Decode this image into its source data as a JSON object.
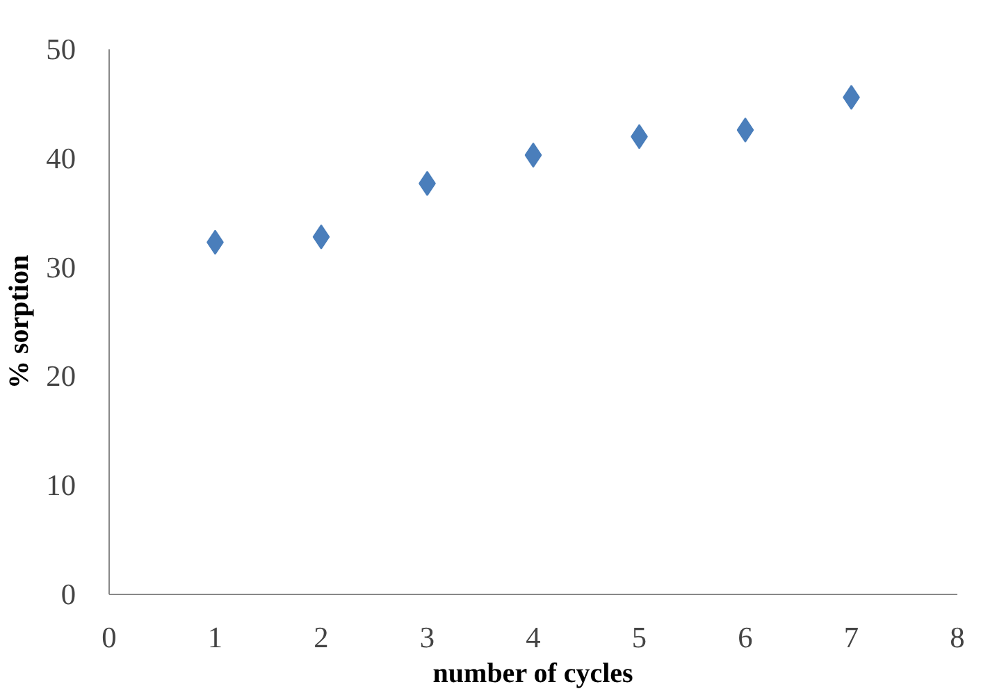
{
  "chart_data": {
    "type": "scatter",
    "xlabel": "number of cycles",
    "ylabel": "% sorption",
    "x": [
      1,
      2,
      3,
      4,
      5,
      6,
      7
    ],
    "series": [
      {
        "color": "#4a7ebb",
        "values": [
          32.3,
          32.8,
          37.7,
          40.3,
          42.0,
          42.6,
          45.6
        ]
      }
    ],
    "xlim": [
      0,
      8
    ],
    "xticks": [
      0,
      1,
      2,
      3,
      4,
      5,
      6,
      7,
      8
    ],
    "ylim": [
      0,
      50
    ],
    "yticks": [
      0,
      10,
      20,
      30,
      40,
      50
    ],
    "marker": "diamond",
    "grid": false
  }
}
